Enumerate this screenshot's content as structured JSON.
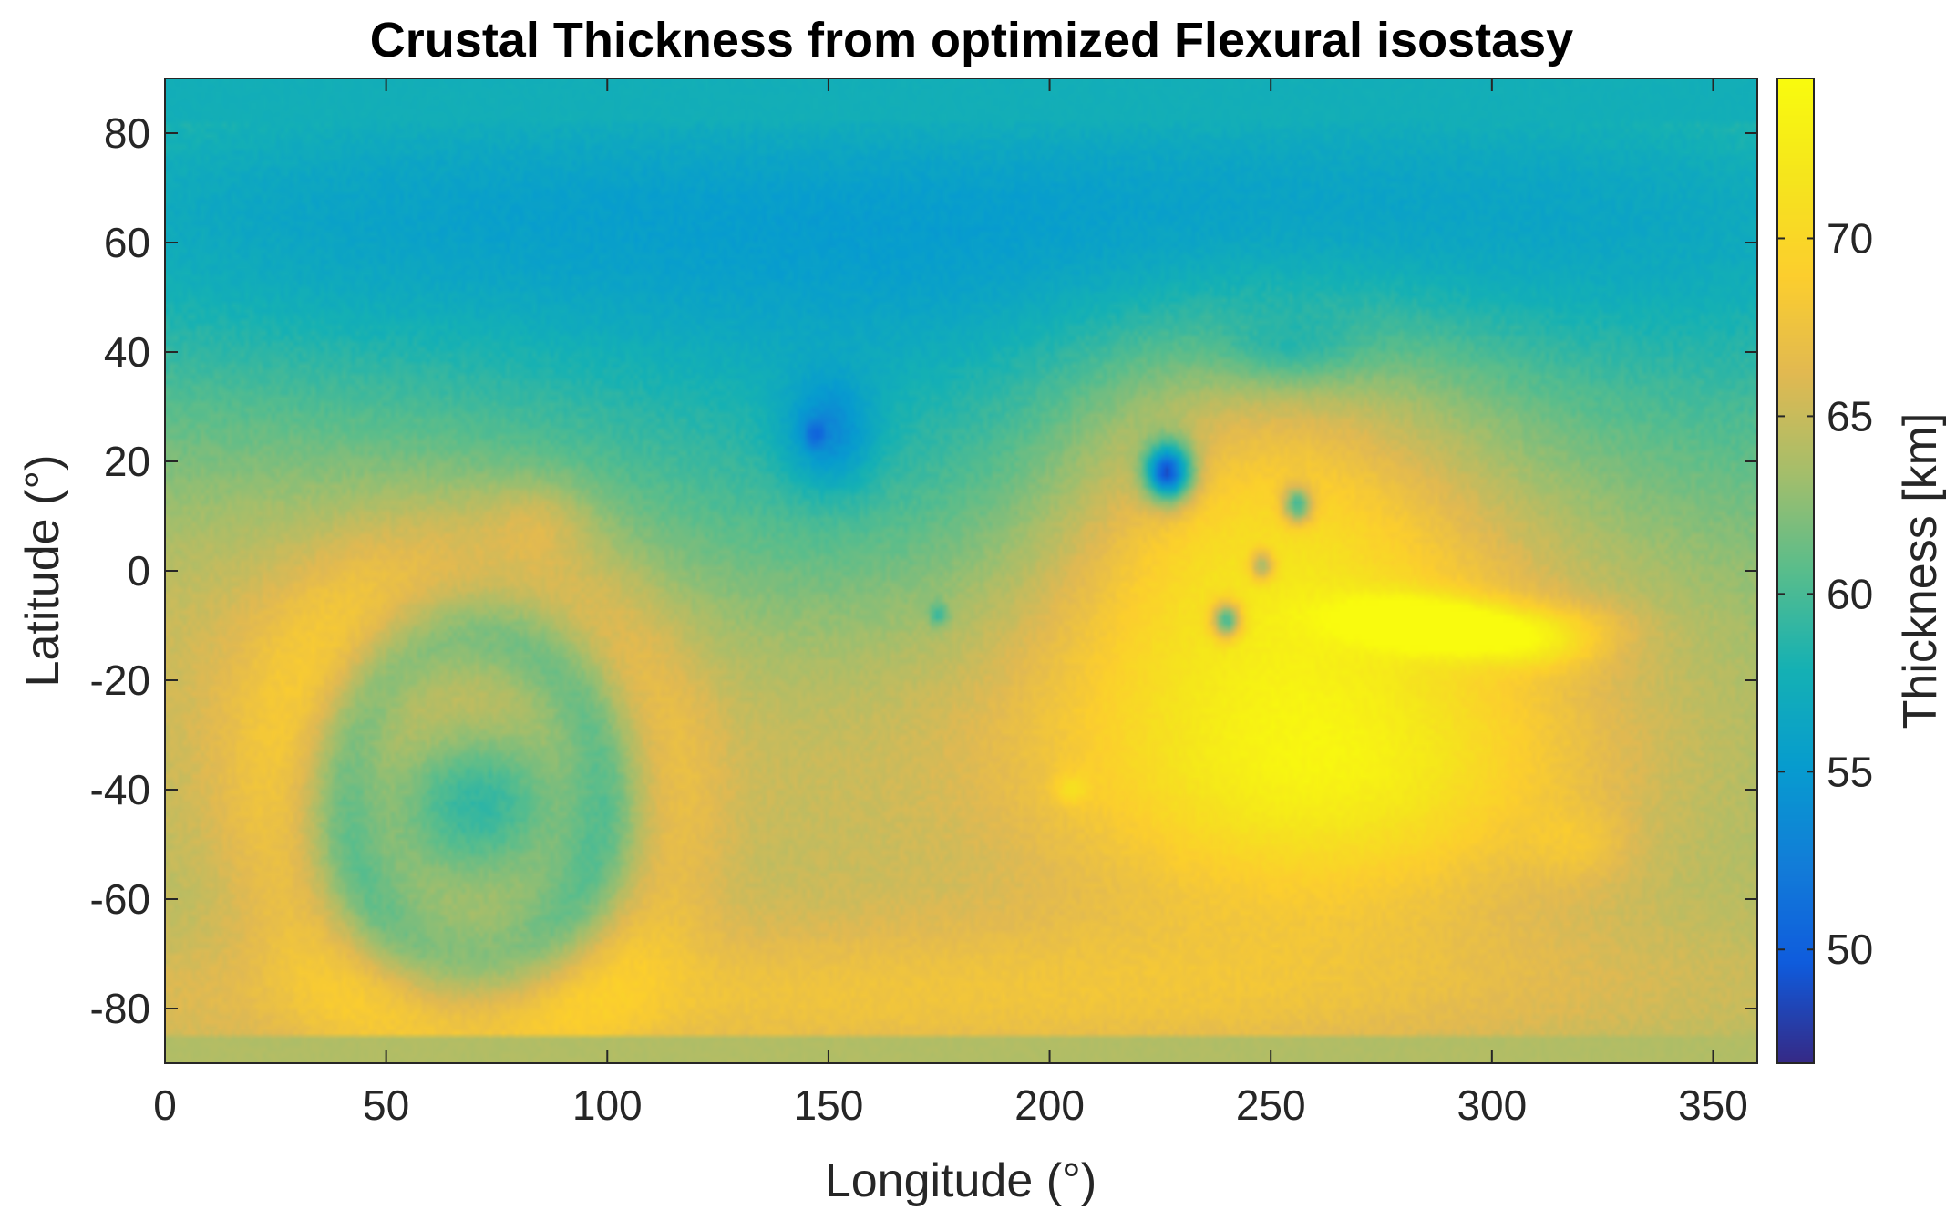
{
  "chart_data": {
    "type": "heatmap",
    "title": "Crustal Thickness from optimized Flexural isostasy",
    "xlabel": "Longitude (°)",
    "ylabel": "Latitude (°)",
    "xlim": [
      0,
      360
    ],
    "ylim": [
      -90,
      90
    ],
    "x_ticks": [
      0,
      50,
      100,
      150,
      200,
      250,
      300,
      350
    ],
    "y_ticks": [
      80,
      60,
      40,
      20,
      0,
      -20,
      -40,
      -60,
      -80
    ],
    "grid": false,
    "colormap": "parula",
    "colorbar": {
      "label": "Thickness [km]",
      "range": [
        46.8,
        74.5
      ],
      "ticks": [
        50,
        55,
        60,
        65,
        70
      ],
      "placement": "right"
    },
    "background_km": 63,
    "features": [
      {
        "type": "gaussian",
        "lon": 185,
        "lat": 68,
        "sx": 160,
        "sy": 22,
        "amp": -6
      },
      {
        "type": "gaussian",
        "lon": 175,
        "lat": 22,
        "sx": 70,
        "sy": 28,
        "amp": -4
      },
      {
        "type": "gaussian",
        "lon": 10,
        "lat": 60,
        "sx": 80,
        "sy": 30,
        "amp": -3
      },
      {
        "type": "gaussian",
        "lon": 350,
        "lat": 50,
        "sx": 80,
        "sy": 35,
        "amp": -3
      },
      {
        "type": "gaussian",
        "lon": 45,
        "lat": -10,
        "sx": 45,
        "sy": 20,
        "amp": 3
      },
      {
        "type": "gaussian",
        "lon": 140,
        "lat": -35,
        "sx": 70,
        "sy": 25,
        "amp": 2
      },
      {
        "type": "gaussian",
        "lon": 100,
        "lat": -80,
        "sx": 140,
        "sy": 10,
        "amp": 3
      },
      {
        "type": "gaussian",
        "lon": 250,
        "lat": -75,
        "sx": 120,
        "sy": 12,
        "amp": 2
      },
      {
        "type": "gaussian",
        "lon": 255,
        "lat": -15,
        "sx": 45,
        "sy": 30,
        "amp": 8
      },
      {
        "type": "gaussian",
        "lon": 245,
        "lat": 10,
        "sx": 30,
        "sy": 20,
        "amp": 4
      },
      {
        "type": "gaussian",
        "lon": 265,
        "lat": -40,
        "sx": 35,
        "sy": 14,
        "amp": 4
      },
      {
        "type": "gaussian",
        "lon": 250,
        "lat": 35,
        "sx": 40,
        "sy": 15,
        "amp": 2
      },
      {
        "type": "gaussian",
        "lon": 330,
        "lat": -30,
        "sx": 45,
        "sy": 25,
        "amp": 1
      },
      {
        "type": "gaussian",
        "lon": 20,
        "lat": -45,
        "sx": 30,
        "sy": 20,
        "amp": 1.5
      },
      {
        "type": "gaussian",
        "lon": 300,
        "lat": -10,
        "sx": 18,
        "sy": 3,
        "amp": 5
      },
      {
        "type": "gaussian",
        "lon": 280,
        "lat": -8,
        "sx": 12,
        "sy": 3,
        "amp": 5
      },
      {
        "type": "gaussian",
        "lon": 310,
        "lat": -14,
        "sx": 10,
        "sy": 3,
        "amp": 4
      },
      {
        "type": "gaussian",
        "lon": 290,
        "lat": -12,
        "sx": 10,
        "sy": 3,
        "amp": 4
      },
      {
        "type": "gaussian",
        "lon": 70,
        "lat": -42,
        "sx": 14,
        "sy": 10,
        "amp": -6
      },
      {
        "type": "ring",
        "lon": 70,
        "lat": -42,
        "r": 30,
        "w": 6,
        "amp": -4
      },
      {
        "type": "ring",
        "lon": 70,
        "lat": -42,
        "r": 46,
        "w": 9,
        "amp": 2
      },
      {
        "type": "gaussian",
        "lon": 150,
        "lat": 25,
        "sx": 7,
        "sy": 7,
        "amp": -5
      },
      {
        "type": "gaussian",
        "lon": 147,
        "lat": 25,
        "sx": 1.6,
        "sy": 1.6,
        "amp": -4
      },
      {
        "type": "gaussian",
        "lon": 227,
        "lat": 18,
        "sx": 4,
        "sy": 4,
        "amp": -14
      },
      {
        "type": "gaussian",
        "lon": 226,
        "lat": 18,
        "sx": 2,
        "sy": 2,
        "amp": -4
      },
      {
        "type": "gaussian",
        "lon": 256,
        "lat": 12,
        "sx": 2.4,
        "sy": 2.4,
        "amp": -10
      },
      {
        "type": "gaussian",
        "lon": 248,
        "lat": 1,
        "sx": 2,
        "sy": 2,
        "amp": -8
      },
      {
        "type": "gaussian",
        "lon": 240,
        "lat": -9,
        "sx": 2.4,
        "sy": 2.4,
        "amp": -12
      },
      {
        "type": "gaussian",
        "lon": 175,
        "lat": -8,
        "sx": 1.5,
        "sy": 1.5,
        "amp": -4
      },
      {
        "type": "gaussian",
        "lon": 255,
        "lat": 40,
        "sx": 12,
        "sy": 5,
        "amp": -3
      },
      {
        "type": "gaussian",
        "lon": 205,
        "lat": -40,
        "sx": 3,
        "sy": 2,
        "amp": 3
      },
      {
        "type": "gaussian",
        "lon": 320,
        "lat": -50,
        "sx": 8,
        "sy": 5,
        "amp": 2
      },
      {
        "type": "gaussian",
        "lon": 85,
        "lat": 10,
        "sx": 8,
        "sy": 5,
        "amp": 2
      }
    ],
    "polar_bands": [
      {
        "lat_min": 82,
        "lat_max": 90,
        "km": 57.5
      },
      {
        "lat_min": -90,
        "lat_max": -85,
        "km": 64
      }
    ]
  }
}
